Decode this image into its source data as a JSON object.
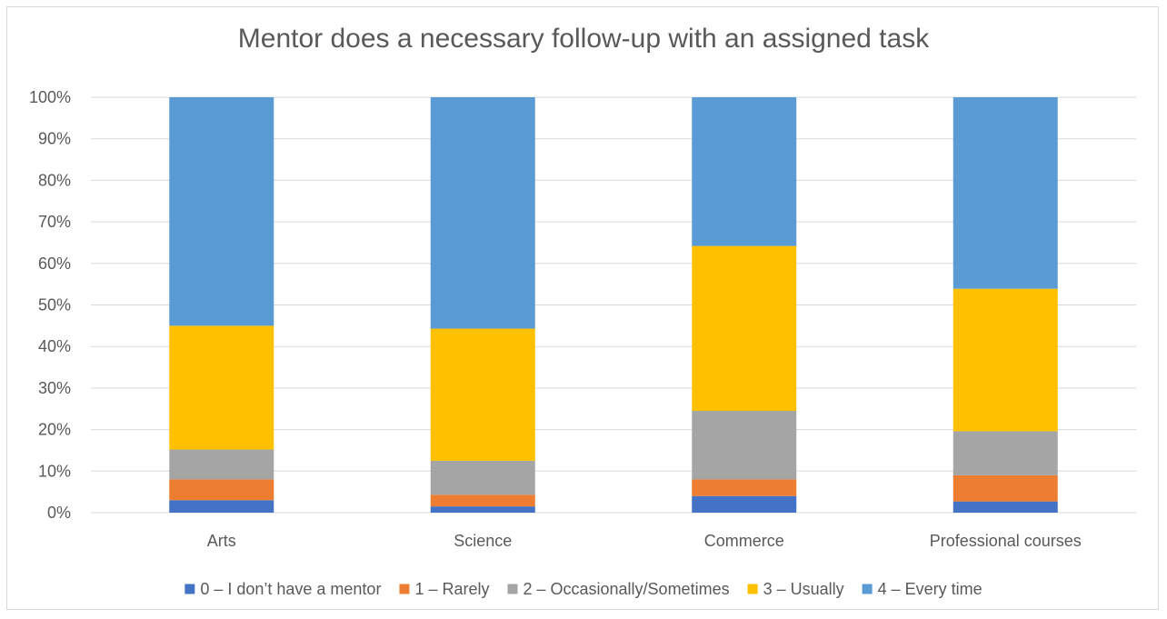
{
  "chart_data": {
    "type": "bar",
    "stacked": true,
    "title": "Mentor does a necessary follow-up with an assigned task",
    "xlabel": "",
    "ylabel": "",
    "categories": [
      "Arts",
      "Science",
      "Commerce",
      "Professional courses"
    ],
    "ylim": [
      0,
      100
    ],
    "y_ticks": [
      "0%",
      "10%",
      "20%",
      "30%",
      "40%",
      "50%",
      "60%",
      "70%",
      "80%",
      "90%",
      "100%"
    ],
    "grid": true,
    "legend_position": "bottom",
    "series": [
      {
        "name": "0 – I don’t have a mentor",
        "color": "#4472C4",
        "values": [
          3.0,
          1.5,
          4.0,
          2.7
        ]
      },
      {
        "name": "1 – Rarely",
        "color": "#ED7D31",
        "values": [
          5.0,
          2.8,
          4.0,
          6.3
        ]
      },
      {
        "name": "2 – Occasionally/Sometimes",
        "color": "#A5A5A5",
        "values": [
          7.2,
          8.2,
          16.5,
          10.6
        ]
      },
      {
        "name": "3 – Usually",
        "color": "#FFC000",
        "values": [
          29.8,
          31.8,
          39.7,
          34.3
        ]
      },
      {
        "name": "4 – Every time",
        "color": "#5B9BD5",
        "values": [
          55.0,
          55.7,
          35.8,
          46.1
        ]
      }
    ]
  }
}
